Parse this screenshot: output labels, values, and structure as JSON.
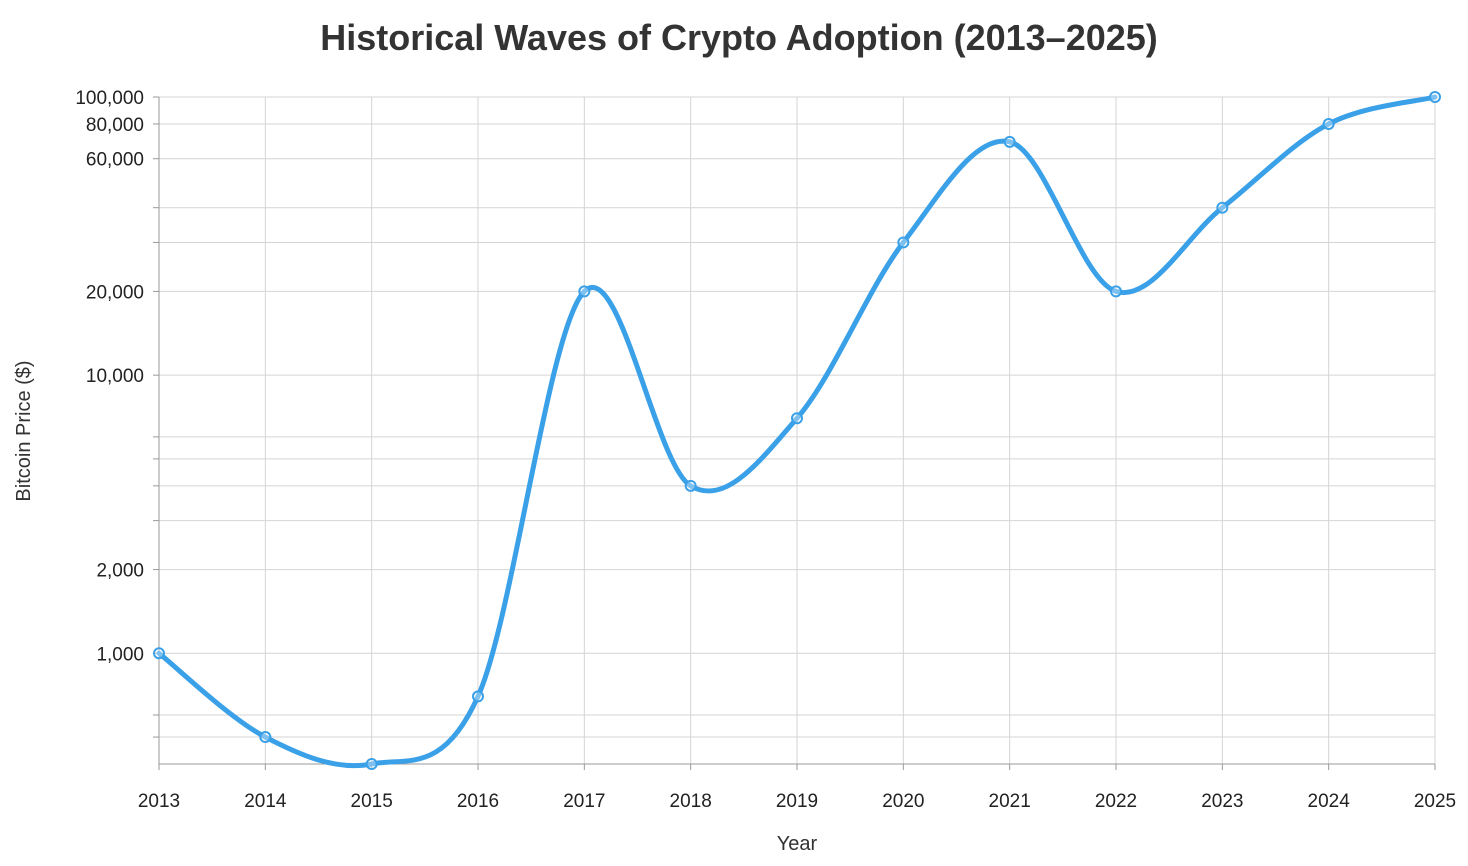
{
  "chart_data": {
    "type": "line",
    "title": "Historical Waves of Crypto Adoption (2013–2025)",
    "xlabel": "Year",
    "ylabel": "Bitcoin Price ($)",
    "yscale": "log",
    "ylim": [
      400,
      100000
    ],
    "grid": true,
    "x": [
      2013,
      2014,
      2015,
      2016,
      2017,
      2018,
      2019,
      2020,
      2021,
      2022,
      2023,
      2024,
      2025
    ],
    "series": [
      {
        "color": "#3aa0e8",
        "values": [
          1000,
          500,
          400,
          700,
          20000,
          4000,
          7000,
          30000,
          69000,
          20000,
          40000,
          80000,
          100000
        ]
      }
    ],
    "y_tick_labels": [
      {
        "value": 1000,
        "label": "1,000"
      },
      {
        "value": 2000,
        "label": "2,000"
      },
      {
        "value": 10000,
        "label": "10,000"
      },
      {
        "value": 20000,
        "label": "20,000"
      },
      {
        "value": 60000,
        "label": "60,000"
      },
      {
        "value": 80000,
        "label": "80,000"
      },
      {
        "value": 100000,
        "label": "100,000"
      }
    ],
    "y_minor_gridlines": [
      500,
      600,
      3000,
      4000,
      5000,
      6000,
      30000,
      40000
    ],
    "x_tick_labels": [
      "2013",
      "2014",
      "2015",
      "2016",
      "2017",
      "2018",
      "2019",
      "2020",
      "2021",
      "2022",
      "2023",
      "2024",
      "2025"
    ]
  }
}
